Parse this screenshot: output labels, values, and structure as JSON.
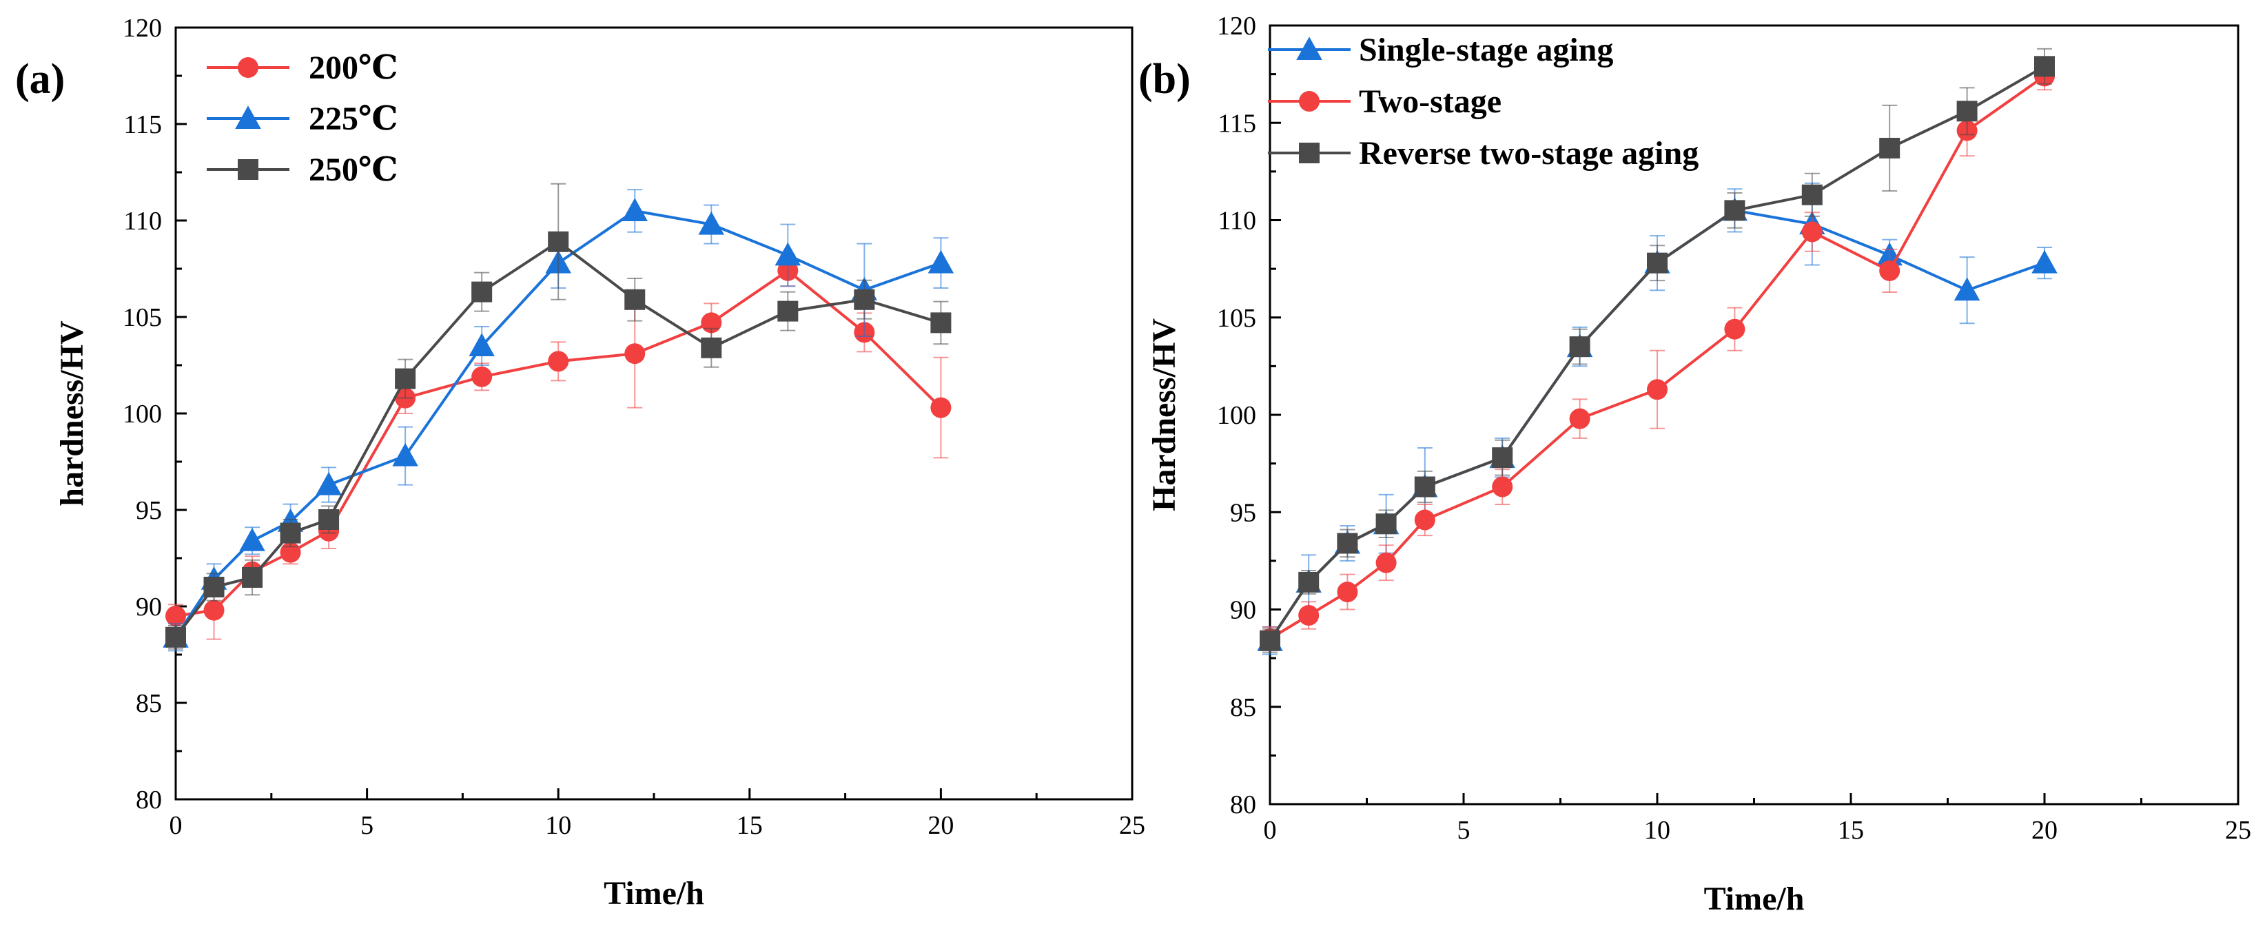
{
  "chart_data": [
    {
      "type": "line",
      "panel_label": "(a)",
      "xlabel": "Time/h",
      "ylabel": "hardness/HV",
      "xlim": [
        0,
        25
      ],
      "ylim": [
        80,
        120
      ],
      "xticks": [
        0,
        5,
        10,
        15,
        20,
        25
      ],
      "yticks": [
        80,
        85,
        90,
        95,
        100,
        105,
        110,
        115,
        120
      ],
      "grid": false,
      "legend_position": "top-left",
      "series": [
        {
          "name": "200℃",
          "color": "#f23f3f",
          "marker": "circle",
          "x": [
            0,
            1,
            2,
            3,
            4,
            6,
            8,
            10,
            12,
            14,
            16,
            18,
            20
          ],
          "y": [
            89.5,
            89.8,
            91.8,
            92.8,
            93.9,
            100.8,
            101.9,
            102.7,
            103.1,
            104.7,
            107.4,
            104.2,
            100.3
          ],
          "err": [
            0.6,
            1.5,
            0.8,
            0.6,
            0.9,
            0.8,
            0.7,
            1.0,
            2.8,
            1.0,
            0.8,
            1.0,
            2.6
          ]
        },
        {
          "name": "225℃",
          "color": "#1a73d9",
          "marker": "triangle",
          "x": [
            0,
            1,
            2,
            3,
            4,
            6,
            8,
            10,
            12,
            14,
            16,
            18,
            20
          ],
          "y": [
            88.4,
            91.4,
            93.4,
            94.4,
            96.3,
            97.8,
            103.5,
            107.8,
            110.5,
            109.8,
            108.2,
            106.4,
            107.8
          ],
          "err": [
            0.7,
            0.8,
            0.7,
            0.9,
            0.9,
            1.5,
            1.0,
            1.3,
            1.1,
            1.0,
            1.6,
            2.4,
            1.3
          ]
        },
        {
          "name": "250℃",
          "color": "#4a4a4a",
          "marker": "square",
          "x": [
            0,
            1,
            2,
            3,
            4,
            6,
            8,
            10,
            12,
            14,
            16,
            18,
            20
          ],
          "y": [
            88.4,
            91.0,
            91.5,
            93.8,
            94.5,
            101.8,
            106.3,
            108.9,
            105.9,
            103.4,
            105.3,
            105.9,
            104.7
          ],
          "err": [
            0.6,
            0.7,
            0.9,
            0.7,
            0.7,
            1.0,
            1.0,
            3.0,
            1.1,
            1.0,
            1.0,
            1.0,
            1.1
          ]
        }
      ]
    },
    {
      "type": "line",
      "panel_label": "(b)",
      "xlabel": "Time/h",
      "ylabel": "Hardness/HV",
      "xlim": [
        0,
        25
      ],
      "ylim": [
        80,
        120
      ],
      "xticks": [
        0,
        5,
        10,
        15,
        20,
        25
      ],
      "yticks": [
        80,
        85,
        90,
        95,
        100,
        105,
        110,
        115,
        120
      ],
      "grid": false,
      "legend_position": "top-left",
      "series": [
        {
          "name": "Single-stage aging",
          "color": "#1a73d9",
          "marker": "triangle",
          "x": [
            0,
            1,
            2,
            3,
            4,
            6,
            8,
            10,
            12,
            14,
            16,
            18,
            20
          ],
          "y": [
            88.4,
            91.4,
            93.4,
            94.4,
            96.3,
            97.8,
            103.5,
            107.8,
            110.5,
            109.8,
            108.2,
            106.4,
            107.8
          ],
          "err": [
            0.7,
            1.4,
            0.9,
            1.5,
            2.0,
            1.0,
            1.0,
            1.4,
            1.1,
            2.1,
            0.8,
            1.7,
            0.8
          ]
        },
        {
          "name": "Two-stage",
          "color": "#f23f3f",
          "marker": "circle",
          "x": [
            0,
            1,
            2,
            3,
            4,
            6,
            8,
            10,
            12,
            14,
            16,
            18,
            20
          ],
          "y": [
            88.5,
            89.7,
            90.9,
            92.4,
            94.6,
            96.3,
            99.8,
            101.3,
            104.4,
            109.4,
            107.4,
            114.6,
            117.4
          ],
          "err": [
            0.6,
            0.7,
            0.9,
            0.9,
            0.8,
            0.9,
            1.0,
            2.0,
            1.1,
            1.0,
            1.1,
            1.3,
            0.7
          ]
        },
        {
          "name": "Reverse  two-stage aging",
          "color": "#4a4a4a",
          "marker": "square",
          "x": [
            0,
            1,
            2,
            3,
            4,
            6,
            8,
            10,
            12,
            14,
            16,
            18,
            20
          ],
          "y": [
            88.4,
            91.4,
            93.4,
            94.4,
            96.3,
            97.8,
            103.5,
            107.8,
            110.5,
            111.3,
            113.7,
            115.6,
            117.9
          ],
          "err": [
            0.6,
            0.6,
            0.7,
            0.7,
            0.8,
            0.9,
            0.9,
            0.9,
            0.9,
            1.1,
            2.2,
            1.2,
            0.9
          ]
        }
      ]
    }
  ]
}
